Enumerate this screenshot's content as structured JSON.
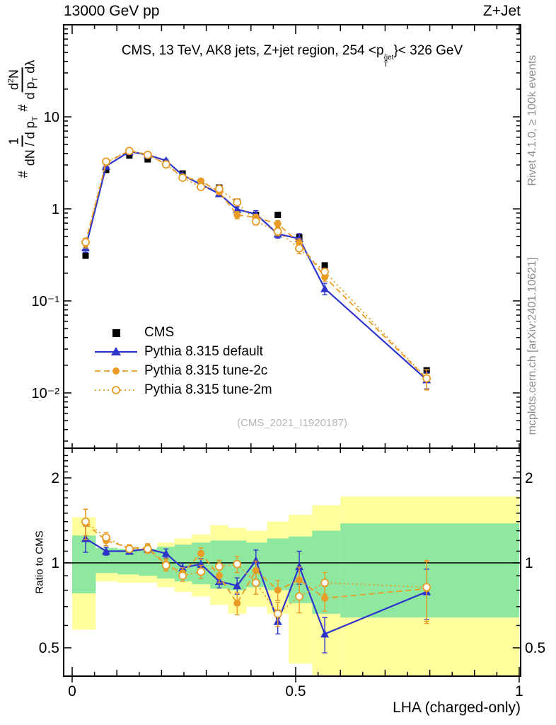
{
  "header": {
    "left": "13000 GeV pp",
    "right": "Z+Jet"
  },
  "panel_title": {
    "prefix": "CMS, 13 TeV, AK8 jets, Z+jet region, 254 <p",
    "sup": "{jet",
    "sub": "T",
    "suffix": "}< 326 GeV"
  },
  "watermark": "(CMS_2021_I1920187)",
  "side_labels": {
    "rivet": "Rivet 4.1.0, ≥ 100k events",
    "mcplots": "mcplots.cern.ch [arXiv:2401.10621]"
  },
  "ylabel_main_parts": {
    "hash1": "#",
    "f1num": "1",
    "f1den": "dN / d p",
    "f1densub": "T",
    "hash2": "#",
    "f2num": "d",
    "f2numsup": "2",
    "f2numtail": "N",
    "f2den": "d p",
    "f2densub": "T",
    "f2dentail": " dλ"
  },
  "ylabel_ratio": "Ratio to CMS",
  "xlabel": "LHA (charged-only)",
  "legend": {
    "items": [
      {
        "label": "CMS"
      },
      {
        "label": "Pythia 8.315 default"
      },
      {
        "label": "Pythia 8.315 tune-2c"
      },
      {
        "label": "Pythia 8.315 tune-2m"
      }
    ]
  },
  "colors": {
    "blue": "#2e34cb",
    "orange": "#e89c25",
    "band_yellow": "#ffff9d",
    "band_green": "#8ee8a0",
    "gray_text": "#8c8c8c",
    "watermark": "#b5b5b5",
    "black": "#000000"
  },
  "chart_data": {
    "type": "line",
    "title": "CMS, 13 TeV, AK8 jets, Z+jet region, 254 < pT{jet} < 326 GeV",
    "xlabel": "LHA (charged-only)",
    "ylabel_main": "# 1/(dN/dpT) # d²N/(dpT dλ)",
    "ylabel_ratio": "Ratio to CMS",
    "x_range": [
      0,
      1
    ],
    "y_range_main": [
      0.0025,
      100
    ],
    "y_range_ratio": [
      0.4,
      2.55
    ],
    "log_y": true,
    "legend_position": "mid-left",
    "grid": false,
    "x": [
      0.03,
      0.076,
      0.128,
      0.169,
      0.21,
      0.247,
      0.288,
      0.329,
      0.369,
      0.411,
      0.46,
      0.508,
      0.565,
      0.793
    ],
    "bin_edges": [
      0,
      0.053,
      0.102,
      0.149,
      0.19,
      0.229,
      0.268,
      0.309,
      0.349,
      0.39,
      0.436,
      0.484,
      0.537,
      0.6,
      1.0
    ],
    "series": [
      {
        "name": "CMS",
        "marker": "square",
        "color": "#000000",
        "line": "none",
        "values": [
          0.31,
          2.65,
          3.8,
          3.45,
          3.1,
          2.42,
          1.86,
          1.7,
          1.19,
          0.86,
          0.86,
          0.49,
          0.243,
          0.0176
        ]
      },
      {
        "name": "Pythia 8.315 default",
        "marker": "triangle",
        "color": "#2e34cb",
        "line": "solid",
        "values": [
          0.378,
          2.915,
          4.18,
          3.864,
          3.348,
          2.323,
          1.841,
          1.462,
          0.988,
          0.877,
          0.533,
          0.475,
          0.136,
          0.0139
        ],
        "ratio": [
          1.22,
          1.1,
          1.1,
          1.12,
          1.08,
          0.96,
          0.99,
          0.86,
          0.83,
          1.02,
          0.62,
          0.97,
          0.56,
          0.79
        ],
        "ratio_err": [
          0.13,
          0.035,
          0.025,
          0.035,
          0.04,
          0.035,
          0.045,
          0.045,
          0.055,
          0.09,
          0.06,
          0.13,
          0.08,
          0.16
        ]
      },
      {
        "name": "Pythia 8.315 tune-2c",
        "marker": "circle",
        "color": "#e89c25",
        "line": "dashed",
        "values": [
          0.428,
          3.18,
          4.294,
          3.899,
          3.069,
          2.226,
          2.009,
          1.53,
          0.857,
          0.808,
          0.688,
          0.426,
          0.182,
          0.0143
        ],
        "ratio": [
          1.38,
          1.2,
          1.13,
          1.13,
          0.99,
          0.92,
          1.08,
          0.9,
          0.72,
          0.94,
          0.8,
          0.87,
          0.75,
          0.81
        ],
        "ratio_err": [
          0.17,
          0.05,
          0.03,
          0.04,
          0.045,
          0.04,
          0.05,
          0.05,
          0.065,
          0.075,
          0.065,
          0.095,
          0.075,
          0.2
        ]
      },
      {
        "name": "Pythia 8.315 tune-2m",
        "marker": "circle-open",
        "color": "#e89c25",
        "line": "dotted",
        "values": [
          0.434,
          3.26,
          4.256,
          3.864,
          3.038,
          2.178,
          1.73,
          1.649,
          1.178,
          0.731,
          0.568,
          0.372,
          0.207,
          0.0144
        ],
        "ratio": [
          1.4,
          1.23,
          1.12,
          1.12,
          0.98,
          0.9,
          0.93,
          0.97,
          0.99,
          0.85,
          0.66,
          0.76,
          0.85,
          0.82
        ],
        "ratio_err": [
          0.15,
          0.05,
          0.03,
          0.04,
          0.045,
          0.04,
          0.05,
          0.05,
          0.065,
          0.075,
          0.065,
          0.095,
          0.075,
          0.2
        ]
      }
    ],
    "bands": {
      "yellow": [
        [
          0.58,
          1.45
        ],
        [
          0.86,
          1.13
        ],
        [
          0.85,
          1.12
        ],
        [
          0.85,
          1.12
        ],
        [
          0.82,
          1.18
        ],
        [
          0.79,
          1.22
        ],
        [
          0.76,
          1.26
        ],
        [
          0.71,
          1.36
        ],
        [
          0.66,
          1.33
        ],
        [
          0.7,
          1.3
        ],
        [
          0.66,
          1.4
        ],
        [
          0.44,
          1.48
        ],
        [
          0.4,
          1.6
        ],
        [
          0.36,
          1.72
        ]
      ],
      "green": [
        [
          0.78,
          1.25
        ],
        [
          0.92,
          1.13
        ],
        [
          0.91,
          1.12
        ],
        [
          0.9,
          1.12
        ],
        [
          0.88,
          1.14
        ],
        [
          0.86,
          1.16
        ],
        [
          0.84,
          1.18
        ],
        [
          0.81,
          1.2
        ],
        [
          0.8,
          1.2
        ],
        [
          0.82,
          1.18
        ],
        [
          0.8,
          1.22
        ],
        [
          0.72,
          1.24
        ],
        [
          0.66,
          1.3
        ],
        [
          0.64,
          1.38
        ]
      ]
    },
    "ticks": {
      "main_y_labels": [
        {
          "v": 10,
          "t": "10"
        },
        {
          "v": 1,
          "t": "1"
        },
        {
          "v": 0.1,
          "t": "10⁻¹"
        },
        {
          "v": 0.01,
          "t": "10⁻²"
        }
      ],
      "ratio_y_labels": [
        {
          "v": 2,
          "t": "2"
        },
        {
          "v": 1,
          "t": "1"
        },
        {
          "v": 0.5,
          "t": "0.5"
        }
      ],
      "x_labels": [
        {
          "v": 0,
          "t": "0"
        },
        {
          "v": 0.5,
          "t": "0.5"
        },
        {
          "v": 1,
          "t": "1"
        }
      ]
    }
  }
}
